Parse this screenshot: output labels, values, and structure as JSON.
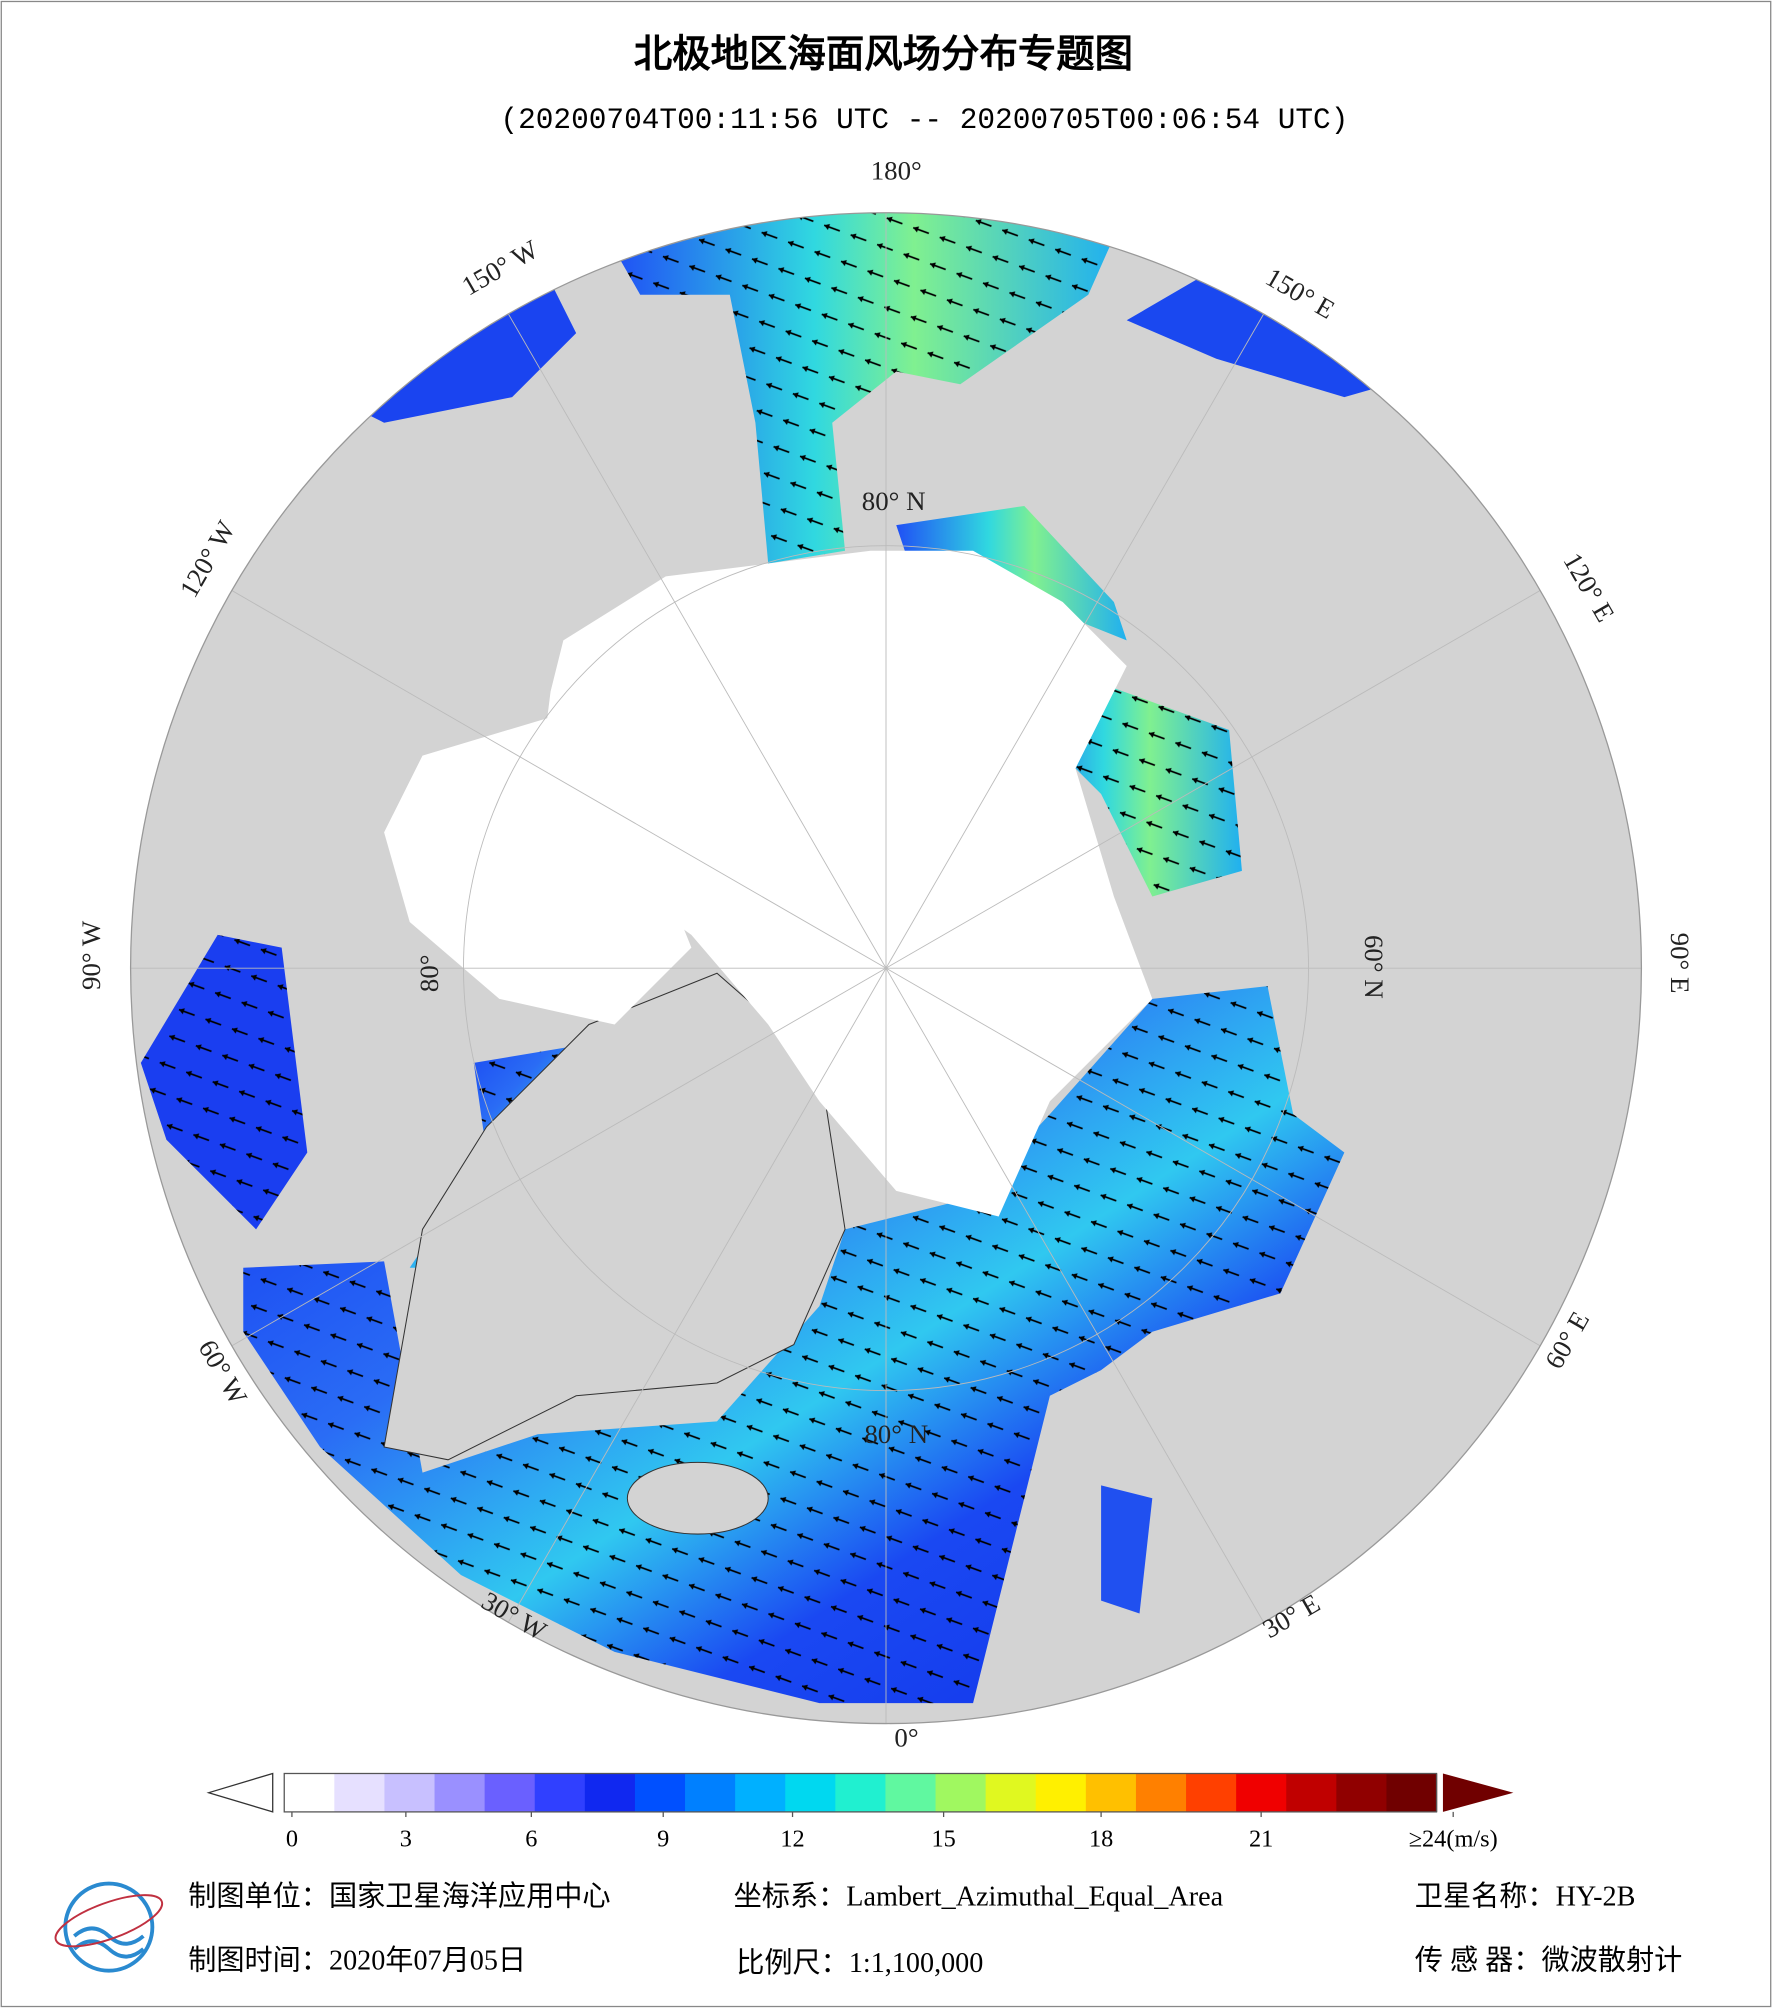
{
  "title": "北极地区海面风场分布专题图",
  "subtitle": "(20200704T00:11:56 UTC -- 20200705T00:06:54 UTC)",
  "map": {
    "longitude_labels": [
      "180°",
      "150° E",
      "120° E",
      "90° E",
      "60° E",
      "30° E",
      "0°",
      "30° W",
      "60° W",
      "90° W",
      "120° W",
      "150° W"
    ],
    "latitude_labels": [
      "80° N",
      "60° N",
      "80° N",
      "80°"
    ]
  },
  "colorbar": {
    "colors": [
      "#ffffff",
      "#e6e0ff",
      "#c8c0ff",
      "#9a90ff",
      "#6a60ff",
      "#3040ff",
      "#1028f0",
      "#0050ff",
      "#0080ff",
      "#00b0ff",
      "#00d8f0",
      "#20f0d0",
      "#60f8a0",
      "#a0f860",
      "#e0f820",
      "#fff000",
      "#ffc000",
      "#ff8000",
      "#ff4000",
      "#f00000",
      "#c00000",
      "#900000",
      "#700000"
    ],
    "ticks": [
      0,
      3,
      6,
      9,
      12,
      15,
      18,
      21,
      {
        "value": 24,
        "label": "≥24(m/s)"
      }
    ]
  },
  "footer": {
    "unit": "制图单位：国家卫星海洋应用中心",
    "projection": "坐标系：Lambert_Azimuthal_Equal_Area",
    "satellite": "卫星名称：HY-2B",
    "date": "制图时间：2020年07月05日",
    "scale": "比例尺：1:1,100,000",
    "sensor": "传 感 器：微波散射计"
  }
}
